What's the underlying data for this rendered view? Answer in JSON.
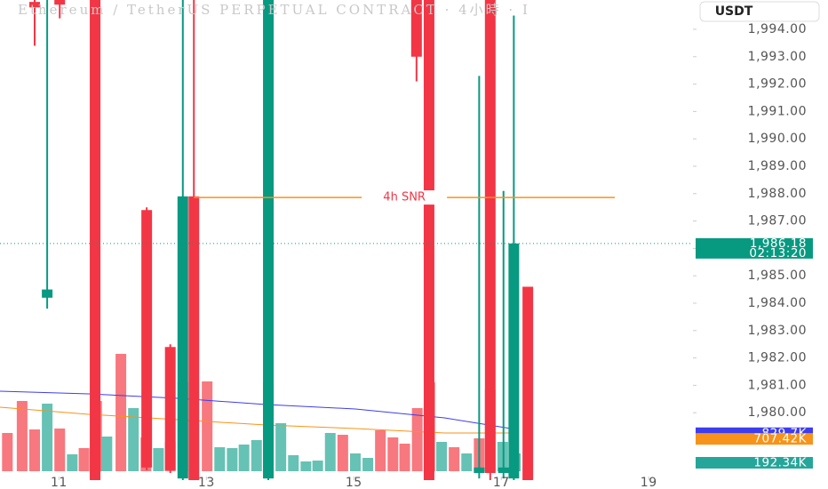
{
  "chart_data": {
    "type": "candlestick",
    "title": "Ethereum / TetherUS PERPETUAL CONTRACT · 4小時 · I",
    "currency_button": "USDT",
    "up_color": "#089981",
    "down_color": "#f23645",
    "xlim": [
      10.2,
      19.6
    ],
    "xticks": [
      11,
      13,
      15,
      17,
      19
    ],
    "ylim": [
      1977.54,
      1995.07
    ],
    "yticks": [
      {
        "value": 1994,
        "label": "1,994.00"
      },
      {
        "value": 1993,
        "label": "1,993.00"
      },
      {
        "value": 1992,
        "label": "1,992.00"
      },
      {
        "value": 1991,
        "label": "1,991.00"
      },
      {
        "value": 1990,
        "label": "1,990.00"
      },
      {
        "value": 1989,
        "label": "1,989.00"
      },
      {
        "value": 1988,
        "label": "1,988.00"
      },
      {
        "value": 1987,
        "label": "1,987.00"
      },
      {
        "value": 1986,
        "label": "1,986.00"
      },
      {
        "value": 1985,
        "label": "1,985.00"
      },
      {
        "value": 1984,
        "label": "1,984.00"
      },
      {
        "value": 1983,
        "label": "1,983.00"
      },
      {
        "value": 1982,
        "label": "1,982.00"
      },
      {
        "value": 1981,
        "label": "1,981.00"
      },
      {
        "value": 1980,
        "label": "1,980.00"
      }
    ],
    "candles": {
      "x": [
        10.67,
        10.84,
        11.01,
        11.49,
        12.19,
        12.51,
        12.68,
        12.83,
        13.84,
        15.85,
        16.02,
        16.7,
        16.85,
        17.03,
        17.17,
        17.36
      ],
      "open": [
        1995.0,
        1984.2,
        1995.2,
        1995.6,
        1987.4,
        1982.4,
        1977.6,
        1987.9,
        1977.6,
        1995.3,
        1995.6,
        1977.8,
        1995.2,
        1977.8,
        1977.6,
        1984.6
      ],
      "high": [
        1995.3,
        1995.4,
        1995.4,
        1995.9,
        1987.5,
        1982.5,
        1995.6,
        1995.6,
        1995.9,
        1995.5,
        1995.9,
        1992.3,
        1995.5,
        1988.1,
        1994.5,
        1984.6
      ],
      "low": [
        1993.4,
        1983.8,
        1994.4,
        1977.2,
        1977.9,
        1977.8,
        1977.3,
        1977.3,
        1977.3,
        1992.1,
        1977.2,
        1977.6,
        1977.5,
        1977.6,
        1977.5,
        1977.3
      ],
      "close": [
        1994.8,
        1984.5,
        1994.9,
        1977.3,
        1978.0,
        1977.9,
        1987.9,
        1977.4,
        1995.6,
        1993.0,
        1977.3,
        1978.0,
        1977.8,
        1978.0,
        1986.18,
        1977.3
      ]
    },
    "last_price": {
      "value": 1986.18,
      "label": "1,986.18",
      "countdown": "02:13:20",
      "color": "#089981"
    },
    "snr": {
      "label": "4h SNR",
      "value": 1987.86,
      "x": [
        12.83,
        18.54
      ],
      "color": "#f7931a"
    },
    "volume": {
      "vlim": [
        0,
        10176
      ],
      "up_color": "#66c2b4",
      "down_color": "#f7787e",
      "x": [
        10.3,
        10.5,
        10.67,
        10.84,
        11.01,
        11.18,
        11.34,
        11.51,
        11.65,
        11.84,
        12.01,
        12.18,
        12.35,
        12.51,
        12.68,
        13.01,
        13.18,
        13.35,
        13.51,
        13.68,
        13.84,
        14.01,
        14.18,
        14.35,
        14.51,
        14.68,
        14.85,
        15.02,
        15.19,
        15.36,
        15.53,
        15.69,
        15.86,
        16.03,
        16.19,
        16.36,
        16.53,
        16.7,
        16.85,
        17.02,
        17.19
      ],
      "values": [
        826,
        1517,
        902,
        1459,
        922,
        365,
        499,
        1517,
        749,
        2534,
        1363,
        730,
        499,
        634,
        1920,
        1939,
        518,
        499,
        576,
        672,
        1920,
        1037,
        346,
        211,
        230,
        826,
        787,
        384,
        288,
        883,
        730,
        595,
        1363,
        1920,
        634,
        518,
        384,
        710,
        1766,
        634,
        384
      ],
      "up": [
        false,
        false,
        false,
        true,
        false,
        true,
        false,
        false,
        true,
        false,
        true,
        false,
        true,
        false,
        true,
        false,
        true,
        true,
        true,
        true,
        true,
        true,
        true,
        true,
        true,
        true,
        false,
        true,
        true,
        false,
        false,
        false,
        false,
        false,
        true,
        false,
        true,
        false,
        false,
        true,
        true
      ],
      "ma": [
        {
          "color": "#3d3dee",
          "x": [
            10.2,
            11.4,
            12.61,
            13.81,
            15.02,
            16.23,
            17.13
          ],
          "values": [
            1728,
            1670,
            1574,
            1440,
            1344,
            1152,
            922
          ]
        },
        {
          "color": "#f7931a",
          "x": [
            10.2,
            11.4,
            12.61,
            13.81,
            15.02,
            16.23,
            17.13
          ],
          "values": [
            1382,
            1229,
            1114,
            998,
            922,
            826,
            826
          ]
        }
      ],
      "badges": [
        {
          "value": 829.7,
          "label": "829.7K",
          "color": "#3d3dee"
        },
        {
          "value": 707.42,
          "label": "707.42K",
          "color": "#f7931a"
        },
        {
          "value": 192.34,
          "label": "192.34K",
          "color": "#26a69a"
        }
      ]
    }
  }
}
